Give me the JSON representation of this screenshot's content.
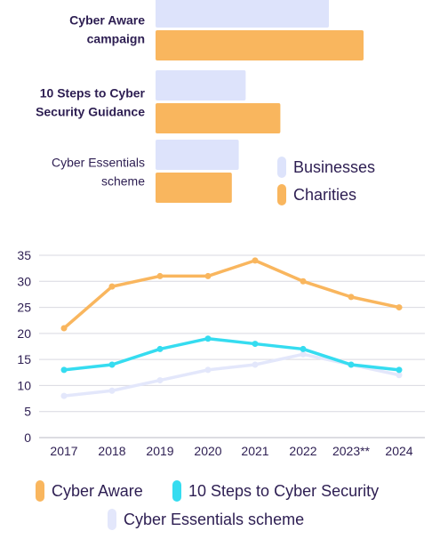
{
  "colors": {
    "businesses": "#dde3fb",
    "charities": "#f9b65e",
    "cyber_aware": "#f9b65e",
    "ten_steps": "#35dcf0",
    "cyber_essentials": "#e3e7fb",
    "grid": "#d9d9e0",
    "text": "#2d1e52"
  },
  "chart_data": [
    {
      "type": "bar",
      "orientation": "horizontal",
      "categories": [
        "Cyber Aware campaign",
        "10 Steps to Cyber Security Guidance",
        "Cyber Essentials scheme"
      ],
      "category_lines": [
        [
          "Cyber Aware",
          "campaign"
        ],
        [
          "10 Steps to Cyber",
          "Security Guidance"
        ],
        [
          "Cyber Essentials",
          "scheme"
        ]
      ],
      "series": [
        {
          "name": "Businesses",
          "values": [
            25,
            13,
            12
          ]
        },
        {
          "name": "Charities",
          "values": [
            30,
            18,
            11
          ]
        }
      ],
      "legend_position": "right"
    },
    {
      "type": "line",
      "x": [
        "2017",
        "2018",
        "2019",
        "2020",
        "2021",
        "2022",
        "2023**",
        "2024"
      ],
      "ylim": [
        0,
        35
      ],
      "yticks": [
        "0",
        "5",
        "10",
        "15",
        "20",
        "25",
        "30",
        "35"
      ],
      "grid": true,
      "legend_position": "bottom",
      "series": [
        {
          "name": "Cyber Aware",
          "values": [
            21,
            29,
            31,
            31,
            34,
            30,
            27,
            25
          ]
        },
        {
          "name": "10 Steps to Cyber Security",
          "values": [
            13,
            14,
            17,
            19,
            18,
            17,
            14,
            13
          ]
        },
        {
          "name": "Cyber Essentials scheme",
          "values": [
            8,
            9,
            11,
            13,
            14,
            16,
            14,
            12
          ]
        }
      ]
    }
  ]
}
